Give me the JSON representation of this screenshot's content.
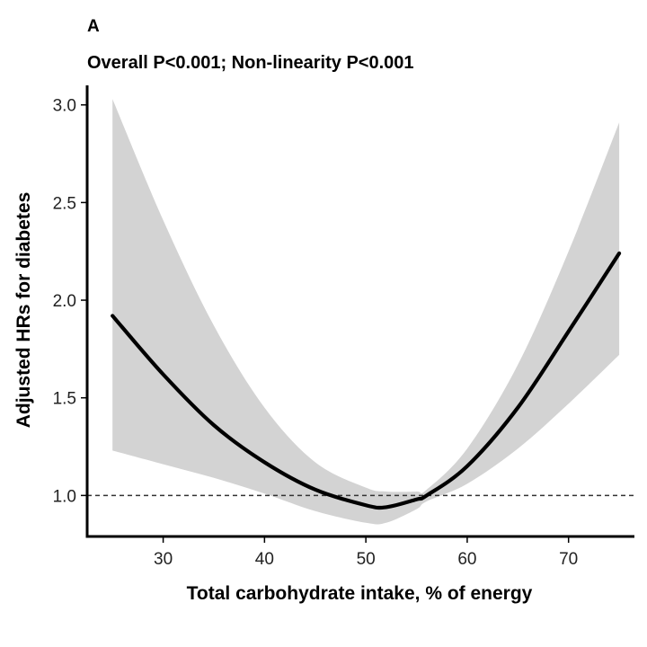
{
  "chart_data": {
    "type": "line",
    "panel_label": "A",
    "title": "Overall P<0.001; Non-linearity P<0.001",
    "xlabel": "Total carbohydrate intake, % of energy",
    "ylabel": "Adjusted HRs for diabetes",
    "xlim": [
      22.5,
      76.5
    ],
    "ylim": [
      0.79,
      3.1
    ],
    "x_ticks": [
      30,
      40,
      50,
      60,
      70
    ],
    "y_ticks": [
      1.0,
      1.5,
      2.0,
      2.5,
      3.0
    ],
    "x_tick_labels": [
      "30",
      "40",
      "50",
      "60",
      "70"
    ],
    "y_tick_labels": [
      "1.0",
      "1.5",
      "2.0",
      "2.5",
      "3.0"
    ],
    "reference_line": {
      "y": 1.0,
      "style": "dashed"
    },
    "grid": false,
    "series": [
      {
        "x": [
          25,
          30,
          35,
          40,
          45,
          50,
          52,
          55,
          56,
          60,
          65,
          70,
          75
        ],
        "y": [
          1.92,
          1.62,
          1.36,
          1.17,
          1.03,
          0.95,
          0.94,
          0.98,
          1.0,
          1.15,
          1.45,
          1.84,
          2.24
        ],
        "lower": [
          1.23,
          1.16,
          1.09,
          1.01,
          0.92,
          0.86,
          0.86,
          0.93,
          0.97,
          1.06,
          1.24,
          1.47,
          1.72
        ],
        "upper": [
          3.03,
          2.41,
          1.87,
          1.45,
          1.17,
          1.04,
          1.02,
          1.02,
          1.03,
          1.24,
          1.67,
          2.25,
          2.91
        ]
      }
    ],
    "colors": {
      "line": "#000000",
      "ci_band": "#d3d3d3",
      "reference": "#333333"
    }
  }
}
